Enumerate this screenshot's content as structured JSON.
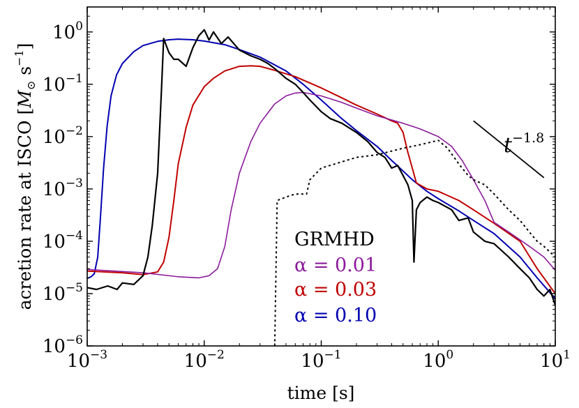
{
  "chart_data": {
    "type": "line",
    "xlabel": "time [s]",
    "ylabel": "acretion rate at ISCO [",
    "ylabel_math": "M",
    "ylabel_sub": "⊙",
    "ylabel_unit": " s",
    "ylabel_unit_exp": "−1",
    "ylabel_close": "]",
    "xscale": "log",
    "yscale": "log",
    "xlim": [
      0.001,
      10
    ],
    "ylim": [
      1e-06,
      3
    ],
    "xticks": [
      {
        "value": 0.001,
        "base": "10",
        "exp": "−3"
      },
      {
        "value": 0.01,
        "base": "10",
        "exp": "−2"
      },
      {
        "value": 0.1,
        "base": "10",
        "exp": "−1"
      },
      {
        "value": 1,
        "base": "10",
        "exp": "0"
      },
      {
        "value": 10,
        "base": "10",
        "exp": "1"
      }
    ],
    "yticks": [
      {
        "value": 1e-06,
        "base": "10",
        "exp": "−6"
      },
      {
        "value": 1e-05,
        "base": "10",
        "exp": "−5"
      },
      {
        "value": 0.0001,
        "base": "10",
        "exp": "−4"
      },
      {
        "value": 0.001,
        "base": "10",
        "exp": "−3"
      },
      {
        "value": 0.01,
        "base": "10",
        "exp": "−2"
      },
      {
        "value": 0.1,
        "base": "10",
        "exp": "−1"
      },
      {
        "value": 1,
        "base": "10",
        "exp": "0"
      }
    ],
    "legend": {
      "placement": "lower-center",
      "entries": [
        {
          "label": "GRMHD",
          "color": "#000000"
        },
        {
          "label": "α = 0.01",
          "color": "#8b1a9b"
        },
        {
          "label": "α = 0.03",
          "color": "#c00000"
        },
        {
          "label": "α = 0.10",
          "color": "#0000b0"
        }
      ]
    },
    "annotation": {
      "base": "t",
      "exp": "−1.8",
      "x1": 2.0,
      "y1": 0.02,
      "x2": 8.0,
      "y2": 0.00164
    },
    "series": [
      {
        "name": "α = 0.10",
        "color": "#0000b0",
        "width": 2.0,
        "points": [
          [
            0.001,
            1.95e-05
          ],
          [
            0.00108,
            2.1e-05
          ],
          [
            0.00115,
            2.4e-05
          ],
          [
            0.00123,
            5e-05
          ],
          [
            0.0013,
            0.0003
          ],
          [
            0.00138,
            0.0025
          ],
          [
            0.00148,
            0.016
          ],
          [
            0.0016,
            0.06
          ],
          [
            0.00178,
            0.15
          ],
          [
            0.002,
            0.25
          ],
          [
            0.0025,
            0.42
          ],
          [
            0.003,
            0.55
          ],
          [
            0.004,
            0.66
          ],
          [
            0.005,
            0.71
          ],
          [
            0.006,
            0.73
          ],
          [
            0.008,
            0.71
          ],
          [
            0.01,
            0.67
          ],
          [
            0.015,
            0.57
          ],
          [
            0.02,
            0.46
          ],
          [
            0.03,
            0.33
          ],
          [
            0.05,
            0.18
          ],
          [
            0.07,
            0.1
          ],
          [
            0.1,
            0.05
          ],
          [
            0.15,
            0.022
          ],
          [
            0.2,
            0.013
          ],
          [
            0.3,
            0.0065
          ],
          [
            0.4,
            0.0035
          ],
          [
            0.5,
            0.0022
          ],
          [
            0.6,
            0.0015
          ],
          [
            0.8,
            0.0009
          ],
          [
            1.0,
            0.00065
          ],
          [
            1.5,
            0.00038
          ],
          [
            2.0,
            0.00025
          ],
          [
            3.0,
            0.00014
          ],
          [
            5.0,
            5e-05
          ],
          [
            7.0,
            2e-05
          ],
          [
            10.0,
            8e-06
          ]
        ]
      },
      {
        "name": "α = 0.03",
        "color": "#c00000",
        "width": 2.0,
        "points": [
          [
            0.001,
            2.7e-05
          ],
          [
            0.002,
            2.5e-05
          ],
          [
            0.003,
            2.3e-05
          ],
          [
            0.004,
            2.6e-05
          ],
          [
            0.0045,
            4e-05
          ],
          [
            0.005,
            0.00012
          ],
          [
            0.0055,
            0.0006
          ],
          [
            0.006,
            0.003
          ],
          [
            0.007,
            0.015
          ],
          [
            0.008,
            0.04
          ],
          [
            0.01,
            0.09
          ],
          [
            0.012,
            0.13
          ],
          [
            0.015,
            0.18
          ],
          [
            0.02,
            0.22
          ],
          [
            0.025,
            0.225
          ],
          [
            0.03,
            0.22
          ],
          [
            0.04,
            0.185
          ],
          [
            0.06,
            0.14
          ],
          [
            0.1,
            0.085
          ],
          [
            0.15,
            0.055
          ],
          [
            0.2,
            0.04
          ],
          [
            0.3,
            0.027
          ],
          [
            0.4,
            0.02
          ],
          [
            0.45,
            0.018
          ],
          [
            0.5,
            0.012
          ],
          [
            0.55,
            0.005
          ],
          [
            0.6,
            0.0025
          ],
          [
            0.65,
            0.0013
          ],
          [
            0.8,
            0.001
          ],
          [
            1.0,
            0.0009
          ],
          [
            1.5,
            0.0006
          ],
          [
            2.0,
            0.0004
          ],
          [
            3.0,
            0.00022
          ],
          [
            5.0,
            0.0001
          ],
          [
            7.0,
            3e-05
          ],
          [
            10.0,
            1e-05
          ]
        ]
      },
      {
        "name": "α = 0.01",
        "color": "#8b1a9b",
        "width": 1.6,
        "points": [
          [
            0.001,
            2.9e-05
          ],
          [
            0.003,
            2.5e-05
          ],
          [
            0.006,
            2.1e-05
          ],
          [
            0.009,
            2e-05
          ],
          [
            0.011,
            2.2e-05
          ],
          [
            0.013,
            3e-05
          ],
          [
            0.015,
            8e-05
          ],
          [
            0.017,
            0.0004
          ],
          [
            0.02,
            0.002
          ],
          [
            0.025,
            0.008
          ],
          [
            0.03,
            0.018
          ],
          [
            0.04,
            0.042
          ],
          [
            0.05,
            0.06
          ],
          [
            0.06,
            0.068
          ],
          [
            0.07,
            0.07
          ],
          [
            0.1,
            0.06
          ],
          [
            0.15,
            0.045
          ],
          [
            0.2,
            0.035
          ],
          [
            0.3,
            0.025
          ],
          [
            0.5,
            0.018
          ],
          [
            0.7,
            0.014
          ],
          [
            1.0,
            0.01
          ],
          [
            1.3,
            0.0065
          ],
          [
            1.6,
            0.0035
          ],
          [
            2.0,
            0.0015
          ],
          [
            2.5,
            0.0006
          ],
          [
            3.0,
            0.00023
          ],
          [
            4.0,
            0.00015
          ],
          [
            6.0,
            8e-05
          ],
          [
            8.0,
            5e-05
          ],
          [
            10.0,
            2.8e-05
          ]
        ]
      },
      {
        "name": "GRMHD",
        "color": "#000000",
        "width": 2.2,
        "points": [
          [
            0.001,
            1.3e-05
          ],
          [
            0.0012,
            1.2e-05
          ],
          [
            0.0015,
            1.4e-05
          ],
          [
            0.0018,
            1.2e-05
          ],
          [
            0.002,
            1.6e-05
          ],
          [
            0.0025,
            1.5e-05
          ],
          [
            0.003,
            2.2e-05
          ],
          [
            0.0033,
            5e-05
          ],
          [
            0.0036,
            0.0002
          ],
          [
            0.004,
            0.002
          ],
          [
            0.0043,
            0.07
          ],
          [
            0.0045,
            0.75
          ],
          [
            0.005,
            0.4
          ],
          [
            0.0055,
            0.3
          ],
          [
            0.006,
            0.3
          ],
          [
            0.007,
            0.22
          ],
          [
            0.008,
            0.5
          ],
          [
            0.009,
            0.85
          ],
          [
            0.01,
            1.1
          ],
          [
            0.011,
            0.7
          ],
          [
            0.012,
            1.0
          ],
          [
            0.014,
            0.6
          ],
          [
            0.016,
            0.8
          ],
          [
            0.02,
            0.45
          ],
          [
            0.025,
            0.35
          ],
          [
            0.03,
            0.3
          ],
          [
            0.035,
            0.25
          ],
          [
            0.04,
            0.2
          ],
          [
            0.05,
            0.13
          ],
          [
            0.06,
            0.1
          ],
          [
            0.07,
            0.07
          ],
          [
            0.08,
            0.05
          ],
          [
            0.1,
            0.03
          ],
          [
            0.12,
            0.022
          ],
          [
            0.15,
            0.018
          ],
          [
            0.2,
            0.012
          ],
          [
            0.25,
            0.008
          ],
          [
            0.3,
            0.005
          ],
          [
            0.35,
            0.004
          ],
          [
            0.4,
            0.0025
          ],
          [
            0.45,
            0.0028
          ],
          [
            0.5,
            0.0018
          ],
          [
            0.55,
            0.0012
          ],
          [
            0.6,
            0.0006
          ],
          [
            0.62,
            4e-05
          ],
          [
            0.65,
            0.0004
          ],
          [
            0.7,
            0.00055
          ],
          [
            0.8,
            0.0007
          ],
          [
            0.9,
            0.0006
          ],
          [
            1.0,
            0.00055
          ],
          [
            1.3,
            0.0004
          ],
          [
            1.5,
            0.00025
          ],
          [
            1.8,
            0.00028
          ],
          [
            2.0,
            0.00015
          ],
          [
            2.5,
            0.0001
          ],
          [
            3.0,
            9e-05
          ],
          [
            4.0,
            5e-05
          ],
          [
            5.0,
            3e-05
          ],
          [
            6.0,
            2e-05
          ],
          [
            7.0,
            1.2e-05
          ],
          [
            8.0,
            9e-06
          ],
          [
            9.0,
            1.2e-05
          ],
          [
            10.0,
            6e-06
          ]
        ]
      },
      {
        "name": "",
        "color": "#000000",
        "width": 2.0,
        "dash": "3,4",
        "points": [
          [
            0.04,
            8e-07
          ],
          [
            0.042,
            0.0006
          ],
          [
            0.05,
            0.0007
          ],
          [
            0.06,
            0.0008
          ],
          [
            0.07,
            0.0008
          ],
          [
            0.075,
            0.0008
          ],
          [
            0.08,
            0.0015
          ],
          [
            0.1,
            0.0025
          ],
          [
            0.2,
            0.004
          ],
          [
            0.3,
            0.0045
          ],
          [
            0.5,
            0.006
          ],
          [
            0.7,
            0.007
          ],
          [
            0.9,
            0.008
          ],
          [
            1.0,
            0.0085
          ],
          [
            1.2,
            0.006
          ],
          [
            1.5,
            0.003
          ],
          [
            1.8,
            0.0018
          ],
          [
            2.0,
            0.0015
          ],
          [
            2.5,
            0.0012
          ],
          [
            3.0,
            0.0008
          ],
          [
            4.0,
            0.0004
          ],
          [
            5.0,
            0.00025
          ],
          [
            6.0,
            0.00015
          ],
          [
            7.0,
            0.0001
          ],
          [
            8.0,
            8e-05
          ],
          [
            10.0,
            5e-05
          ]
        ]
      }
    ]
  }
}
